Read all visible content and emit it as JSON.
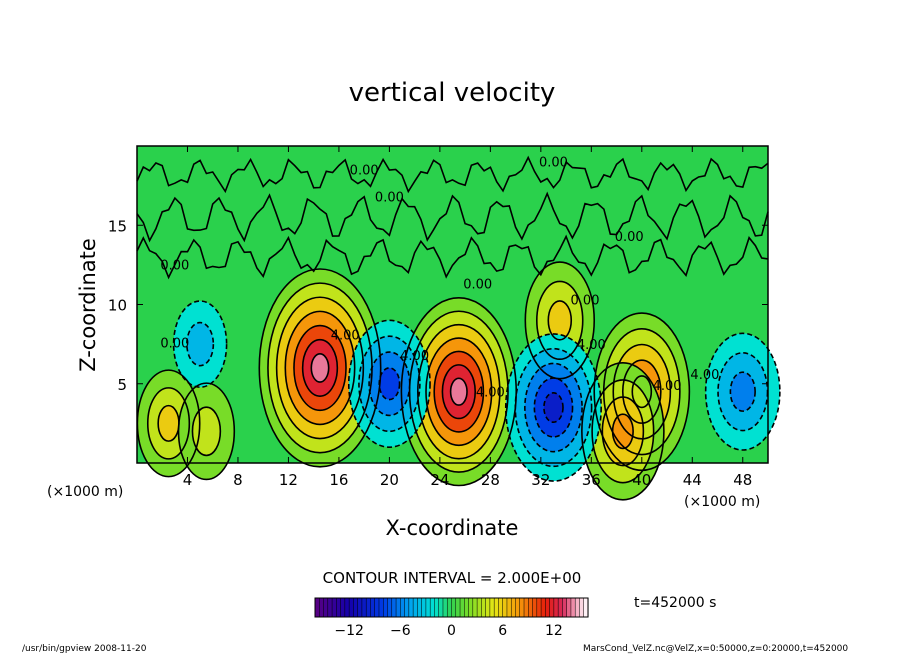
{
  "chart_data": {
    "type": "heatmap",
    "title": "vertical velocity",
    "xlabel": "X-coordinate",
    "ylabel": "Z-coordinate",
    "x_unit_label": "(×1000 m)",
    "y_unit_label": "(×1000 m)",
    "xlim": [
      0,
      50
    ],
    "ylim": [
      0,
      20
    ],
    "x_ticks": [
      "4",
      "8",
      "12",
      "16",
      "20",
      "24",
      "28",
      "32",
      "36",
      "40",
      "44",
      "48"
    ],
    "y_ticks": [
      "5",
      "10",
      "15"
    ],
    "contour_interval_text": "CONTOUR INTERVAL = 2.000E+00",
    "time_text": "t=452000 s",
    "colorbar": {
      "min": -16,
      "max": 16,
      "tick_labels": [
        "−12",
        "−6",
        "0",
        "6",
        "12"
      ],
      "tick_values": [
        -12,
        -6,
        0,
        6,
        12
      ]
    },
    "contour_labels": [
      {
        "text": "0.00",
        "x": 18,
        "y": 18.2
      },
      {
        "text": "0.00",
        "x": 33,
        "y": 18.7
      },
      {
        "text": "0.00",
        "x": 20,
        "y": 16.5
      },
      {
        "text": "0.00",
        "x": 3,
        "y": 12.2
      },
      {
        "text": "0.00",
        "x": 27,
        "y": 11.0
      },
      {
        "text": "0.00",
        "x": 35.5,
        "y": 10.0
      },
      {
        "text": "0.00",
        "x": 39,
        "y": 14.0
      },
      {
        "text": "0.00",
        "x": 3,
        "y": 7.3
      },
      {
        "text": "4.00",
        "x": 16.5,
        "y": 7.8
      },
      {
        "text": "4.00",
        "x": 22,
        "y": 6.5
      },
      {
        "text": "4.00",
        "x": 28,
        "y": 4.2
      },
      {
        "text": "4.00",
        "x": 36,
        "y": 7.2
      },
      {
        "text": "4.00",
        "x": 42,
        "y": 4.6
      },
      {
        "text": "4.00",
        "x": 45,
        "y": 5.3
      }
    ],
    "features": [
      {
        "kind": "updraft",
        "x": 14.5,
        "z": 6,
        "peak": 14
      },
      {
        "kind": "updraft",
        "x": 25.5,
        "z": 4.5,
        "peak": 13
      },
      {
        "kind": "updraft",
        "x": 40,
        "z": 4.5,
        "peak": 10
      },
      {
        "kind": "updraft",
        "x": 38.5,
        "z": 2,
        "peak": 8
      },
      {
        "kind": "updraft",
        "x": 2.5,
        "z": 2.5,
        "peak": 5
      },
      {
        "kind": "updraft",
        "x": 5.5,
        "z": 2,
        "peak": 4
      },
      {
        "kind": "updraft",
        "x": 33.5,
        "z": 9,
        "peak": 6
      },
      {
        "kind": "downdraft",
        "x": 20,
        "z": 5,
        "peak": -7
      },
      {
        "kind": "downdraft",
        "x": 33,
        "z": 3.5,
        "peak": -9
      },
      {
        "kind": "downdraft",
        "x": 48,
        "z": 4.5,
        "peak": -6
      },
      {
        "kind": "downdraft",
        "x": 5,
        "z": 7.5,
        "peak": -3
      }
    ]
  },
  "footer": {
    "left": "/usr/bin/gpview  2008-11-20",
    "right": "MarsCond_VelZ.nc@VelZ,x=0:50000,z=0:20000,t=452000"
  }
}
